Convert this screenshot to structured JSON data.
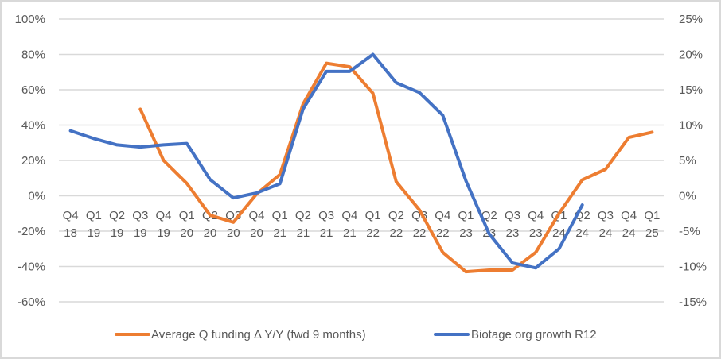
{
  "chart_data": {
    "type": "line",
    "title": "",
    "categories": [
      [
        "Q4",
        "18"
      ],
      [
        "Q1",
        "19"
      ],
      [
        "Q2",
        "19"
      ],
      [
        "Q3",
        "19"
      ],
      [
        "Q4",
        "19"
      ],
      [
        "Q1",
        "20"
      ],
      [
        "Q2",
        "20"
      ],
      [
        "Q3",
        "20"
      ],
      [
        "Q4",
        "20"
      ],
      [
        "Q1",
        "21"
      ],
      [
        "Q2",
        "21"
      ],
      [
        "Q3",
        "21"
      ],
      [
        "Q4",
        "21"
      ],
      [
        "Q1",
        "22"
      ],
      [
        "Q2",
        "22"
      ],
      [
        "Q3",
        "22"
      ],
      [
        "Q4",
        "22"
      ],
      [
        "Q1",
        "23"
      ],
      [
        "Q2",
        "23"
      ],
      [
        "Q3",
        "23"
      ],
      [
        "Q4",
        "23"
      ],
      [
        "Q1",
        "24"
      ],
      [
        "Q2",
        "24"
      ],
      [
        "Q3",
        "24"
      ],
      [
        "Q4",
        "24"
      ],
      [
        "Q1",
        "25"
      ]
    ],
    "y_left": {
      "min": -60,
      "max": 100,
      "step": 20,
      "tick_labels": [
        "100%",
        "80%",
        "60%",
        "40%",
        "20%",
        "0%",
        "-20%",
        "-40%",
        "-60%"
      ]
    },
    "y_right": {
      "min": -15,
      "max": 25,
      "step": 5,
      "tick_labels": [
        "25%",
        "20%",
        "15%",
        "10%",
        "5%",
        "0%",
        "-5%",
        "-10%",
        "-15%"
      ]
    },
    "grid": true,
    "legend_position": "bottom",
    "series": [
      {
        "name": "Average Q funding Δ Y/Y (fwd 9 months)",
        "axis": "left",
        "color": "#ed7d31",
        "values": [
          null,
          null,
          null,
          49,
          20,
          7,
          -11,
          -15,
          1,
          12,
          52,
          75,
          73,
          58,
          8,
          -8,
          -32,
          -43,
          -42,
          -42,
          -32,
          -10,
          9,
          15,
          33,
          36
        ]
      },
      {
        "name": "Biotage org growth R12",
        "axis": "right",
        "color": "#4472c4",
        "values": [
          9.2,
          8.1,
          7.2,
          6.9,
          7.2,
          7.4,
          2.3,
          -0.3,
          0.4,
          1.7,
          12.3,
          17.6,
          17.6,
          20.0,
          16.0,
          14.6,
          11.4,
          2.1,
          -5.4,
          -9.5,
          -10.2,
          -7.5,
          -1.3,
          null,
          null,
          null
        ]
      }
    ]
  }
}
